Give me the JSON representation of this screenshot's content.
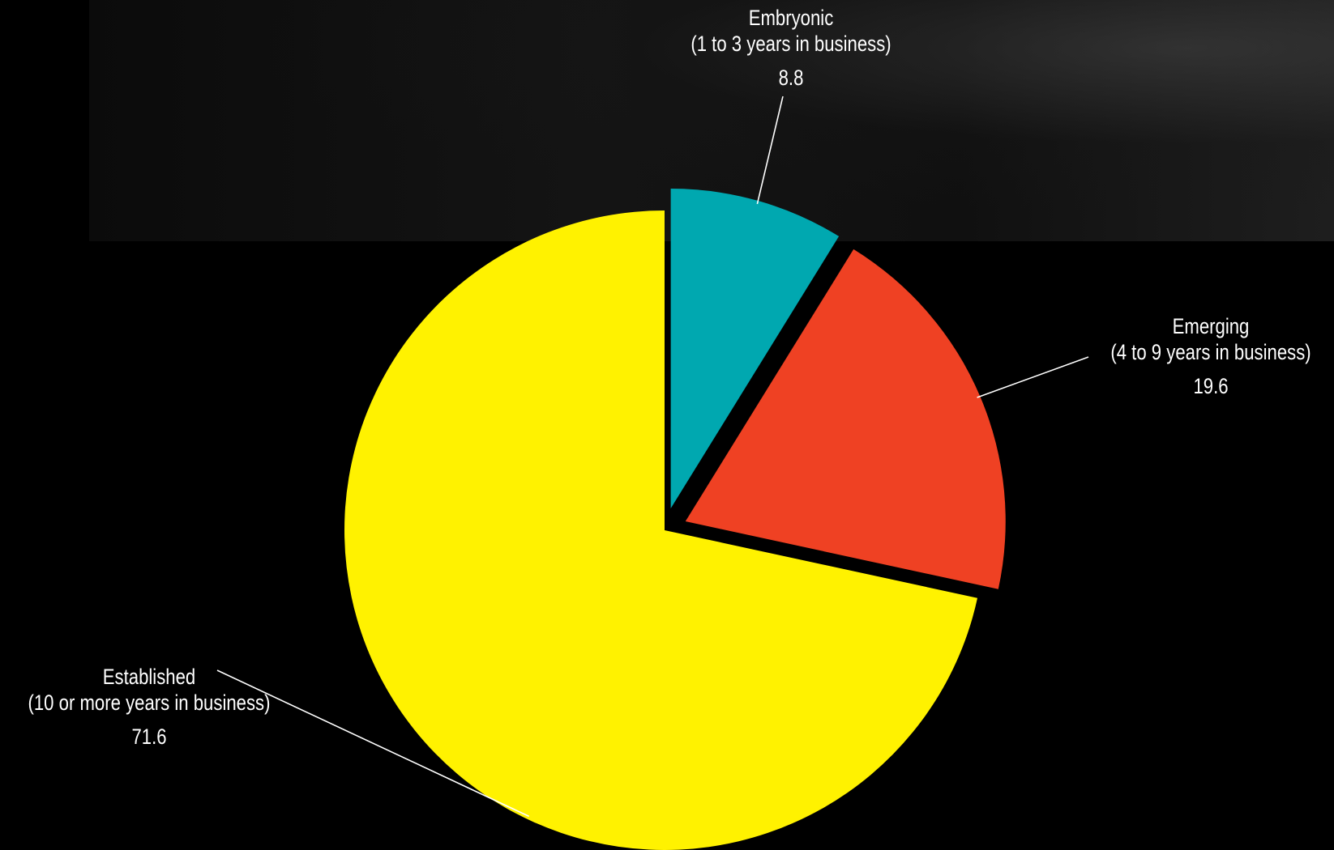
{
  "chart_data": {
    "type": "pie",
    "title": "",
    "slices": [
      {
        "name": "Embryonic",
        "sublabel": "(1 to 3 years in business)",
        "value": 8.8,
        "display_value": "8.8",
        "color": "#00A8B0",
        "exploded": true
      },
      {
        "name": "Emerging",
        "sublabel": "(4 to 9 years in business)",
        "value": 19.6,
        "display_value": "19.6",
        "color": "#EF4123",
        "exploded": true
      },
      {
        "name": "Established",
        "sublabel": "(10 or more years in business)",
        "value": 71.6,
        "display_value": "71.6",
        "color": "#FFF200",
        "exploded": false
      }
    ],
    "start_angle": "12 o'clock, clockwise",
    "legend": "none (callout labels with leader lines)",
    "background": "#000000",
    "label_color": "#FFFFFF"
  }
}
